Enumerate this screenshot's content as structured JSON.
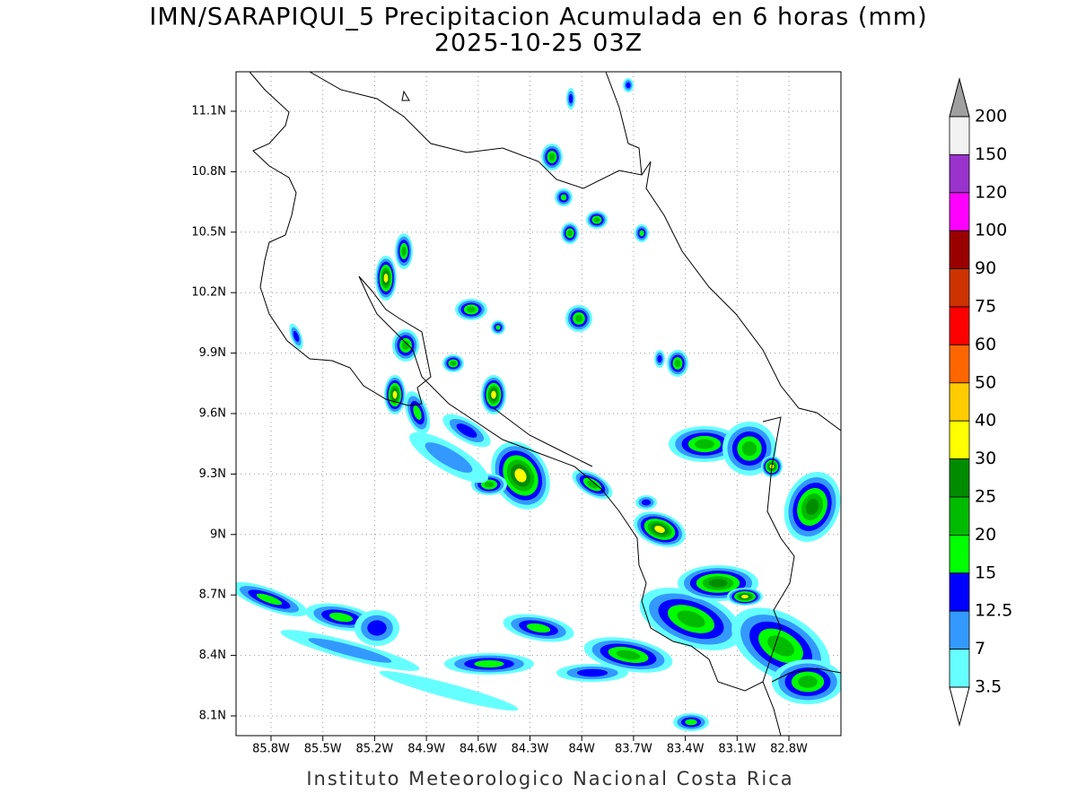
{
  "header": {
    "title": "IMN/SARAPIQUI_5 Precipitacion Acumulada en 6 horas (mm)",
    "subtitle": "2025-10-25 03Z"
  },
  "map": {
    "lat_labels": [
      "11.1N",
      "10.8N",
      "10.5N",
      "10.2N",
      "9.9N",
      "9.6N",
      "9.3N",
      "9N",
      "8.7N",
      "8.4N",
      "8.1N"
    ],
    "lon_labels": [
      "85.8W",
      "85.5W",
      "85.2W",
      "84.9W",
      "84.6W",
      "84.3W",
      "84W",
      "83.7W",
      "83.4W",
      "83.1W",
      "82.8W"
    ]
  },
  "colorbar": {
    "labels": [
      200,
      150,
      120,
      100,
      90,
      75,
      60,
      50,
      40,
      30,
      25,
      20,
      15,
      12.5,
      7,
      3.5
    ],
    "colors": [
      "#f2f2f2",
      "#9933cc",
      "#ff00ff",
      "#990000",
      "#cc3300",
      "#ff0000",
      "#ff6600",
      "#ffcc00",
      "#ffff00",
      "#008c00",
      "#00bb00",
      "#00ff00",
      "#0000ff",
      "#3399ff",
      "#66ffff"
    ],
    "over_color": "#a0a0a0",
    "under_color": "#ffffff"
  },
  "footer": "Instituto Meteorologico Nacional Costa Rica"
}
